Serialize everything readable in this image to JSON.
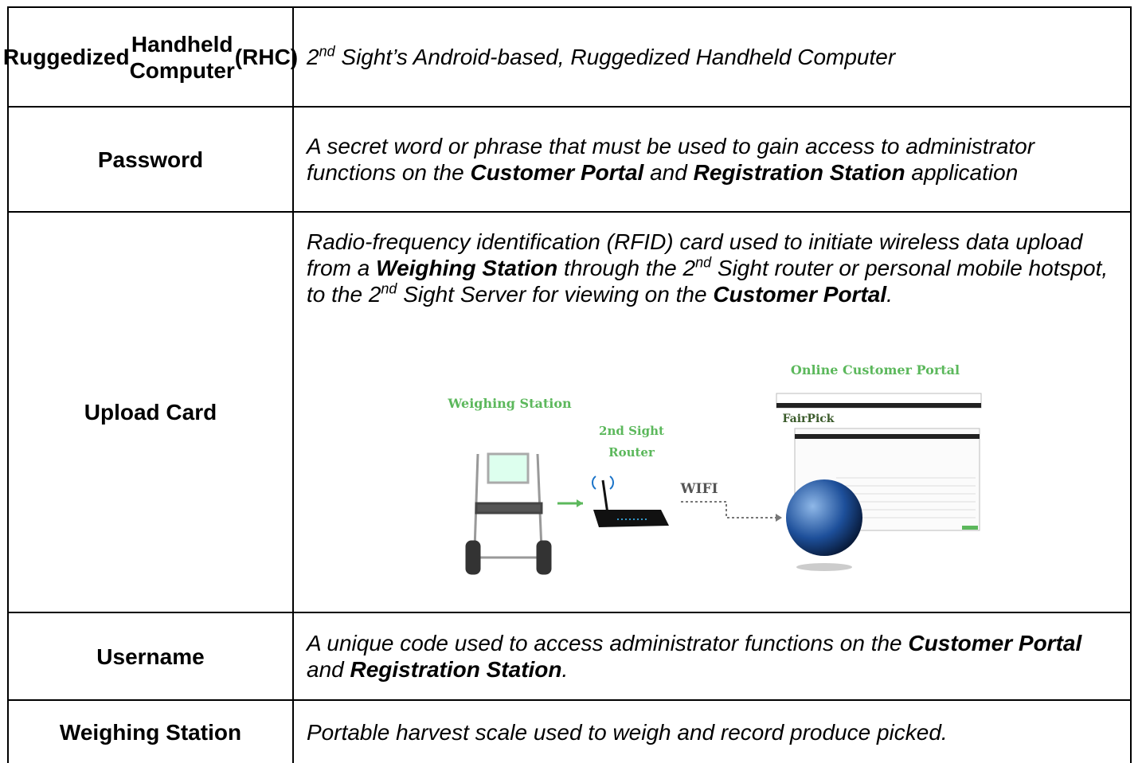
{
  "table": {
    "rows": [
      {
        "term": [
          "Ruggedized",
          "Handheld Computer",
          "(RHC)"
        ],
        "definition": [
          {
            "text": "2"
          },
          {
            "text": "nd",
            "sup": true
          },
          {
            "text": " Sight’s Android-based, Ruggedized Handheld Computer"
          }
        ]
      },
      {
        "term": [
          "Password"
        ],
        "definition": [
          {
            "text": "A secret word or phrase that must be used to gain access to administrator functions on the "
          },
          {
            "text": "Customer Portal",
            "bold": true
          },
          {
            "text": " and "
          },
          {
            "text": "Registration Station",
            "bold": true
          },
          {
            "text": " application"
          }
        ]
      },
      {
        "term": [
          "Upload Card"
        ],
        "definition": [
          {
            "text": "Radio-frequency identification (RFID) card used to initiate wireless data upload from a "
          },
          {
            "text": "Weighing Station",
            "bold": true
          },
          {
            "text": " through the 2"
          },
          {
            "text": "nd",
            "sup": true
          },
          {
            "text": " Sight router or personal mobile hotspot, to the 2"
          },
          {
            "text": "nd",
            "sup": true
          },
          {
            "text": " Sight Server for viewing on the "
          },
          {
            "text": "Customer Portal",
            "bold": true
          },
          {
            "text": "."
          }
        ]
      },
      {
        "term": [
          "Username"
        ],
        "definition": [
          {
            "text": "A unique code used to access administrator functions on the "
          },
          {
            "text": "Customer Portal",
            "bold": true
          },
          {
            "text": " and "
          },
          {
            "text": "Registration Station",
            "bold": true
          },
          {
            "text": "."
          }
        ]
      },
      {
        "term": [
          "Weighing Station"
        ],
        "definition": [
          {
            "text": "Portable harvest scale used to weigh and record produce picked."
          }
        ]
      }
    ]
  },
  "figure": {
    "portal_label": "Online Customer Portal",
    "station_label": "Weighing Station",
    "router_label": [
      "2nd Sight",
      "Router"
    ],
    "wifi_label": "WIFI",
    "brand": "FairPick"
  }
}
